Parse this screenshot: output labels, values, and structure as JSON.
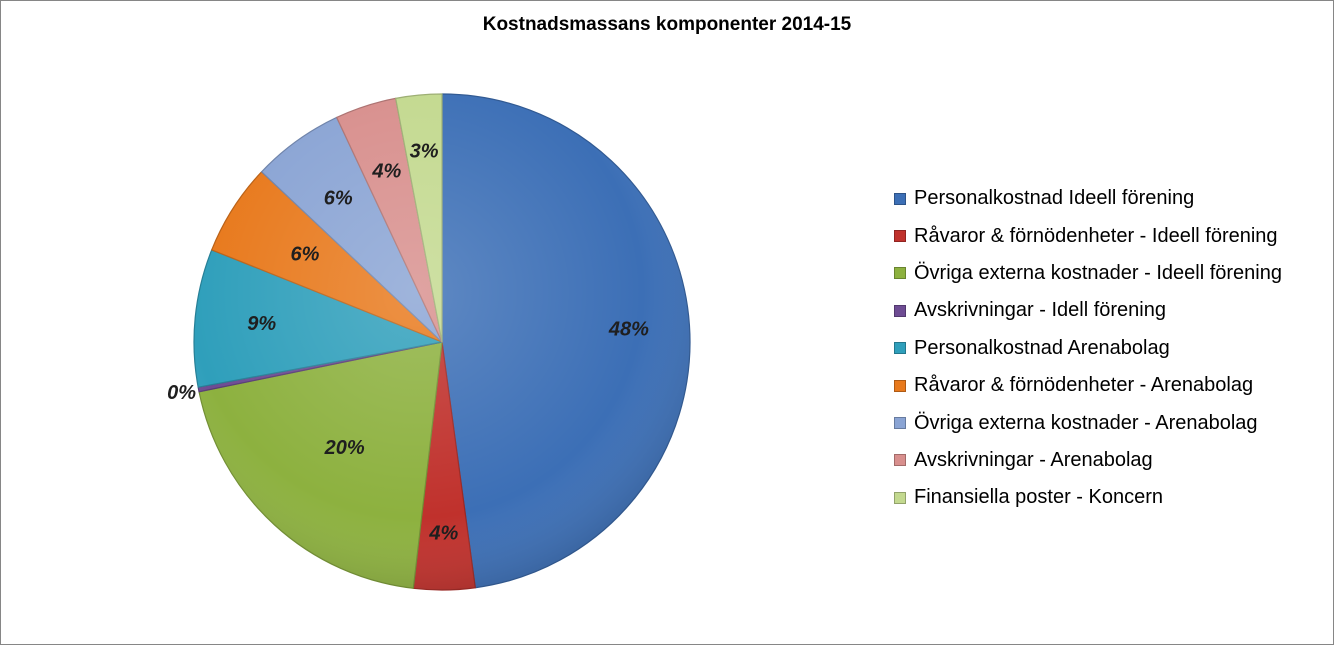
{
  "chart_data": {
    "type": "pie",
    "title": "Kostnadsmassans komponenter 2014-15",
    "legend_position": "right",
    "slices": [
      {
        "name": "Personalkostnad Ideell förening",
        "value": 48,
        "label": "48%",
        "color": "#3c6fb6"
      },
      {
        "name": "Råvaror & förnödenheter - Ideell förening",
        "value": 4,
        "label": "4%",
        "color": "#c0312c"
      },
      {
        "name": "Övriga externa kostnader - Ideell förening",
        "value": 20,
        "label": "20%",
        "color": "#8db13f"
      },
      {
        "name": "Avskrivningar - Idell förening",
        "value": 0.3,
        "label": "0%",
        "color": "#6e4c93"
      },
      {
        "name": "Personalkostnad Arenabolag",
        "value": 9,
        "label": "9%",
        "color": "#2f9fbb"
      },
      {
        "name": "Råvaror & förnödenheter - Arenabolag",
        "value": 6,
        "label": "6%",
        "color": "#e8791c"
      },
      {
        "name": "Övriga externa kostnader - Arenabolag",
        "value": 6,
        "label": "6%",
        "color": "#8aa4d4"
      },
      {
        "name": "Avskrivningar - Arenabolag",
        "value": 4,
        "label": "4%",
        "color": "#d88f8d"
      },
      {
        "name": "Finansiella poster - Koncern",
        "value": 3,
        "label": "3%",
        "color": "#c3d98f"
      }
    ]
  }
}
